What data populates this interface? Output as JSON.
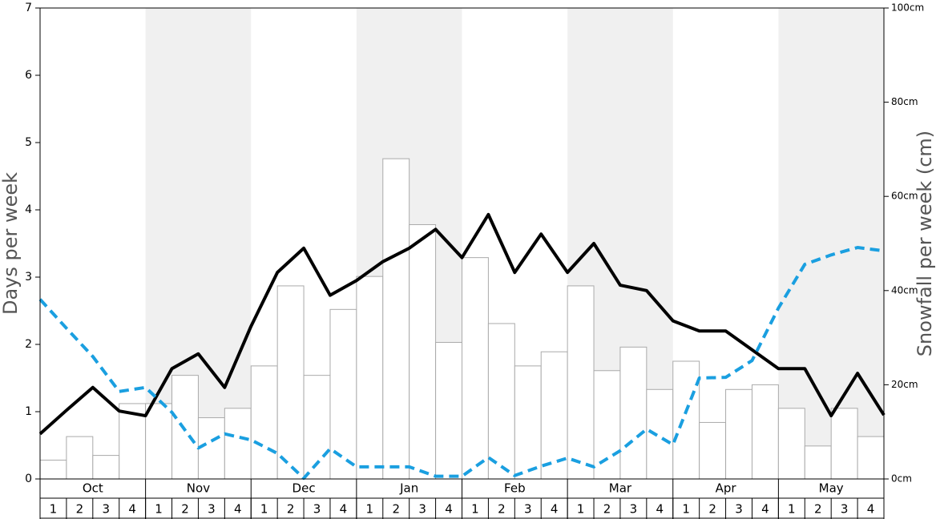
{
  "chart_data": {
    "type": "bar",
    "ylabel": "Days per week",
    "y2label": "Snowfall per week (cm)",
    "months": [
      "Oct",
      "Nov",
      "Dec",
      "Jan",
      "Feb",
      "Mar",
      "Apr",
      "May"
    ],
    "categories": [
      1,
      2,
      3,
      4,
      1,
      2,
      3,
      4,
      1,
      2,
      3,
      4,
      1,
      2,
      3,
      4,
      1,
      2,
      3,
      4,
      1,
      2,
      3,
      4,
      1,
      2,
      3,
      4,
      1,
      2,
      3,
      4
    ],
    "x": [
      0,
      1,
      2,
      3,
      4,
      5,
      6,
      7,
      8,
      9,
      10,
      11,
      12,
      13,
      14,
      15,
      16,
      17,
      18,
      19,
      20,
      21,
      22,
      23,
      24,
      25,
      26,
      27,
      28,
      29,
      30,
      31,
      32
    ],
    "xlim": [
      0,
      32
    ],
    "ylim": [
      0,
      7
    ],
    "yticks": [
      0,
      1,
      2,
      3,
      4,
      5,
      6,
      7
    ],
    "y2lim": [
      0,
      100
    ],
    "y2ticks": [
      {
        "value": 0,
        "label": "0cm"
      },
      {
        "value": 20,
        "label": "20cm"
      },
      {
        "value": 40,
        "label": "40cm"
      },
      {
        "value": 60,
        "label": "60cm"
      },
      {
        "value": 80,
        "label": "80cm"
      },
      {
        "value": 100,
        "label": "100cm"
      }
    ],
    "shade": "#f0f0f0",
    "series": [
      {
        "type": "bar",
        "axis": "y2",
        "color": "#ffffff",
        "edge": "#aaaaaa",
        "values": [
          4,
          9,
          5,
          16,
          16,
          22,
          13,
          15,
          24,
          41,
          22,
          36,
          43,
          68,
          54,
          29,
          47,
          33,
          24,
          27,
          41,
          23,
          28,
          19,
          25,
          12,
          19,
          20,
          15,
          7,
          15,
          9
        ]
      },
      {
        "type": "line",
        "color": "#000000",
        "values": [
          0.67,
          1.02,
          1.36,
          1.01,
          0.94,
          1.64,
          1.86,
          1.36,
          2.27,
          3.07,
          3.43,
          2.73,
          2.95,
          3.23,
          3.43,
          3.71,
          3.29,
          3.93,
          3.07,
          3.64,
          3.07,
          3.5,
          2.88,
          2.8,
          2.35,
          2.2,
          2.2,
          1.92,
          1.64,
          1.64,
          0.94,
          1.57,
          0.95
        ]
      },
      {
        "type": "line",
        "color": "#1a9fe0",
        "dashed": true,
        "values": [
          2.67,
          2.24,
          1.82,
          1.3,
          1.36,
          0.99,
          0.46,
          0.67,
          0.58,
          0.38,
          0.01,
          0.45,
          0.18,
          0.18,
          0.18,
          0.04,
          0.04,
          0.32,
          0.05,
          0.19,
          0.31,
          0.18,
          0.42,
          0.74,
          0.51,
          1.5,
          1.51,
          1.76,
          2.54,
          3.19,
          3.33,
          3.44,
          3.39
        ]
      }
    ]
  }
}
